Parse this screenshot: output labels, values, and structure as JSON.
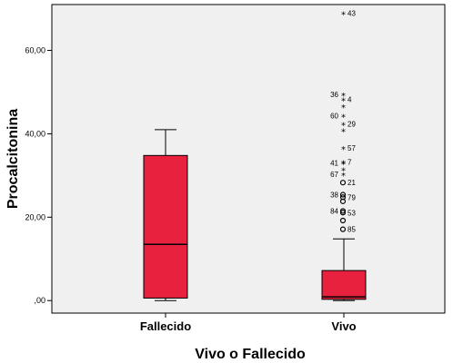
{
  "chart_data": {
    "type": "boxplot",
    "xlabel": "Vivo o Fallecido",
    "ylabel": "Procalcitonina",
    "ylim": [
      -3,
      71
    ],
    "yticks": [
      0,
      20,
      40,
      60
    ],
    "ytick_labels": [
      ",00",
      "20,00",
      "40,00",
      "60,00"
    ],
    "grid": false,
    "colors": {
      "box_fill": "#e8213f",
      "plot_bg": "#f0f0f0",
      "frame": "#000000"
    },
    "categories": [
      "Fallecido",
      "Vivo"
    ],
    "boxes": [
      {
        "category": "Fallecido",
        "whisker_low": 0.0,
        "q1": 0.6,
        "median": 13.5,
        "q3": 34.8,
        "whisker_high": 41.0,
        "outliers": []
      },
      {
        "category": "Vivo",
        "whisker_low": 0.0,
        "q1": 0.3,
        "median": 0.9,
        "q3": 7.2,
        "whisker_high": 14.8,
        "outliers": [
          {
            "label": "43",
            "value": 68.9,
            "marker": "star"
          },
          {
            "label": "36",
            "value": 49.5,
            "marker": "star"
          },
          {
            "label": "4",
            "value": 48.3,
            "marker": "star"
          },
          {
            "label": "",
            "value": 46.6,
            "marker": "star"
          },
          {
            "label": "60",
            "value": 44.3,
            "marker": "star"
          },
          {
            "label": "29",
            "value": 42.4,
            "marker": "star"
          },
          {
            "label": "",
            "value": 40.9,
            "marker": "star"
          },
          {
            "label": "57",
            "value": 36.6,
            "marker": "star"
          },
          {
            "label": "41",
            "value": 33.0,
            "marker": "star"
          },
          {
            "label": "7",
            "value": 33.2,
            "marker": "star"
          },
          {
            "label": "67",
            "value": 30.3,
            "marker": "star"
          },
          {
            "label": "",
            "value": 31.5,
            "marker": "star"
          },
          {
            "label": "21",
            "value": 28.3,
            "marker": "circle"
          },
          {
            "label": "38",
            "value": 25.4,
            "marker": "circle"
          },
          {
            "label": "79",
            "value": 24.8,
            "marker": "circle"
          },
          {
            "label": "",
            "value": 23.8,
            "marker": "circle"
          },
          {
            "label": "84",
            "value": 21.5,
            "marker": "circle"
          },
          {
            "label": "53",
            "value": 21.1,
            "marker": "circle"
          },
          {
            "label": "",
            "value": 19.2,
            "marker": "circle"
          },
          {
            "label": "85",
            "value": 17.1,
            "marker": "circle"
          }
        ]
      }
    ]
  }
}
